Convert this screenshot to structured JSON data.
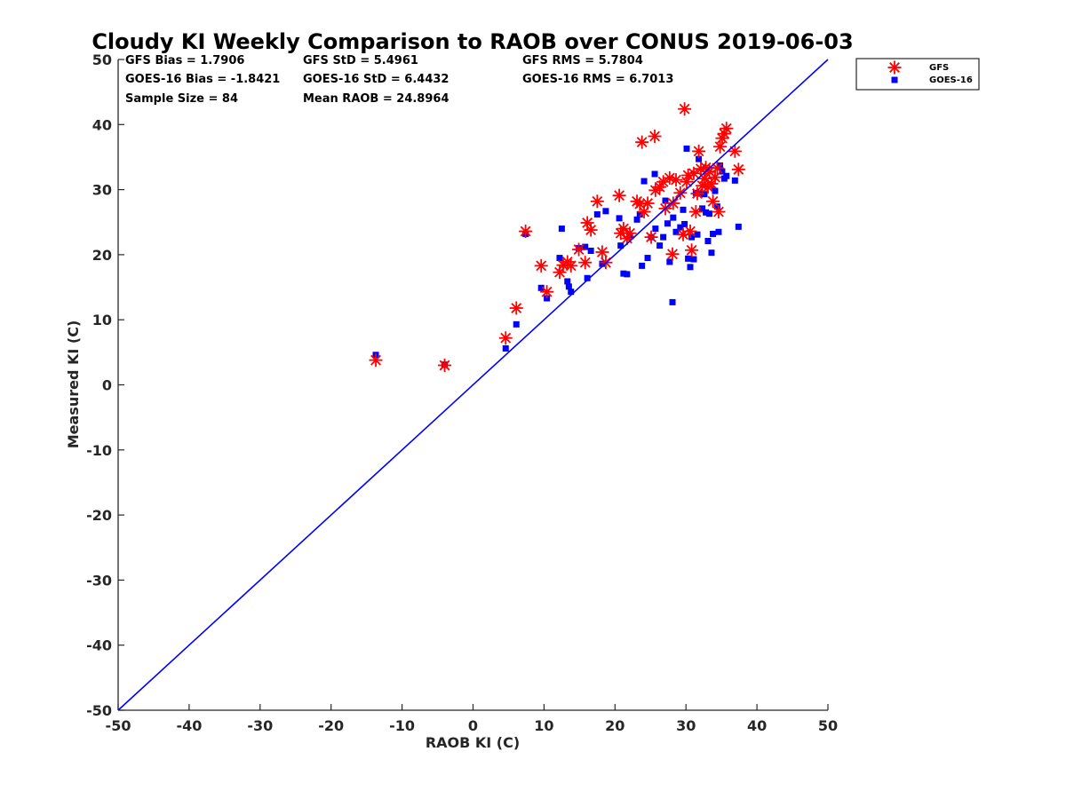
{
  "chart_data": {
    "type": "scatter",
    "title": "Cloudy KI Weekly Comparison to RAOB over CONUS 2019-06-03",
    "xlabel": "RAOB KI (C)",
    "ylabel": "Measured KI (C)",
    "xlim": [
      -50,
      50
    ],
    "ylim": [
      -50,
      50
    ],
    "xticks": [
      "-50",
      "-40",
      "-30",
      "-20",
      "-10",
      "0",
      "10",
      "20",
      "30",
      "40",
      "50"
    ],
    "yticks": [
      "50",
      "40",
      "30",
      "20",
      "10",
      "0",
      "-10",
      "-20",
      "-30",
      "-40",
      "-50"
    ],
    "grid": false,
    "legend_position": "outside-top-right",
    "reference_line": {
      "type": "one-to-one",
      "color": "#0000ff"
    },
    "stats": [
      [
        "GFS Bias = 1.7906",
        "GFS StD = 5.4961",
        "GFS RMS = 5.7804"
      ],
      [
        "GOES-16 Bias = -1.8421",
        "GOES-16 StD = 6.4432",
        "GOES-16 RMS = 6.7013"
      ],
      [
        "Sample Size = 84",
        "Mean RAOB = 24.8964"
      ]
    ],
    "series": [
      {
        "name": "GFS",
        "marker": "asterisk",
        "color": "#ff0000",
        "points": [
          [
            -13.7,
            3.8
          ],
          [
            -4,
            3
          ],
          [
            4.6,
            7.2
          ],
          [
            6.1,
            11.8
          ],
          [
            7.4,
            23.6
          ],
          [
            9.6,
            18.3
          ],
          [
            10.4,
            14.3
          ],
          [
            12.2,
            17.3
          ],
          [
            12.7,
            18.4
          ],
          [
            13.3,
            18.9
          ],
          [
            13.8,
            18.3
          ],
          [
            14.9,
            20.8
          ],
          [
            15.8,
            18.8
          ],
          [
            16.1,
            24.9
          ],
          [
            16.6,
            23.8
          ],
          [
            17.5,
            28.2
          ],
          [
            18.2,
            20.4
          ],
          [
            18.7,
            18.8
          ],
          [
            20.6,
            29.1
          ],
          [
            20.8,
            23.3
          ],
          [
            21.2,
            24
          ],
          [
            21.7,
            22.5
          ],
          [
            22.1,
            23.3
          ],
          [
            23.1,
            28.2
          ],
          [
            23.5,
            27.8
          ],
          [
            23.8,
            37.3
          ],
          [
            24.1,
            26.6
          ],
          [
            24.6,
            27.9
          ],
          [
            25.1,
            22.7
          ],
          [
            25.6,
            38.2
          ],
          [
            25.7,
            29.9
          ],
          [
            26.3,
            30.4
          ],
          [
            26.8,
            31.2
          ],
          [
            27.1,
            27.1
          ],
          [
            27.7,
            31.8
          ],
          [
            28.1,
            20.1
          ],
          [
            28.2,
            27.9
          ],
          [
            28.6,
            31.5
          ],
          [
            29.2,
            29.5
          ],
          [
            29.6,
            23.1
          ],
          [
            29.8,
            42.4
          ],
          [
            30.1,
            31.2
          ],
          [
            30.3,
            32.2
          ],
          [
            30.6,
            23.6
          ],
          [
            30.8,
            20.7
          ],
          [
            31.1,
            32.5
          ],
          [
            31.4,
            26.6
          ],
          [
            31.6,
            29.4
          ],
          [
            31.8,
            35.9
          ],
          [
            32.1,
            33.2
          ],
          [
            32.3,
            30.6
          ],
          [
            32.6,
            31.7
          ],
          [
            32.8,
            33.4
          ],
          [
            33.1,
            30.4
          ],
          [
            33.3,
            32.8
          ],
          [
            33.6,
            30.9
          ],
          [
            33.8,
            28.2
          ],
          [
            34.1,
            31.9
          ],
          [
            34.4,
            33.3
          ],
          [
            34.6,
            26.6
          ],
          [
            34.8,
            36.6
          ],
          [
            35.1,
            37.9
          ],
          [
            35.4,
            38.6
          ],
          [
            35.7,
            39.4
          ],
          [
            36.9,
            35.9
          ],
          [
            37.4,
            33.1
          ]
        ]
      },
      {
        "name": "GOES-16",
        "marker": "square",
        "color": "#0000ff",
        "points": [
          [
            -13.7,
            4.6
          ],
          [
            -4,
            3.1
          ],
          [
            4.6,
            5.6
          ],
          [
            6.1,
            9.3
          ],
          [
            7.4,
            23.2
          ],
          [
            9.6,
            14.9
          ],
          [
            10.4,
            13.3
          ],
          [
            12.2,
            19.5
          ],
          [
            12.5,
            24
          ],
          [
            13.3,
            15.9
          ],
          [
            13.5,
            15.1
          ],
          [
            13.8,
            14.3
          ],
          [
            14.9,
            21
          ],
          [
            15.8,
            21.2
          ],
          [
            16.1,
            16.4
          ],
          [
            16.6,
            20.6
          ],
          [
            17.5,
            26.2
          ],
          [
            18.2,
            18.6
          ],
          [
            18.7,
            26.7
          ],
          [
            20.6,
            25.6
          ],
          [
            20.8,
            21.4
          ],
          [
            21.2,
            17.1
          ],
          [
            21.7,
            17
          ],
          [
            22.1,
            22.9
          ],
          [
            23.1,
            25.4
          ],
          [
            23.5,
            26.2
          ],
          [
            23.8,
            18.3
          ],
          [
            24.1,
            31.3
          ],
          [
            24.6,
            19.5
          ],
          [
            25.1,
            22.7
          ],
          [
            25.6,
            32.4
          ],
          [
            25.7,
            24
          ],
          [
            26.3,
            21.4
          ],
          [
            26.8,
            22.7
          ],
          [
            27.1,
            28.3
          ],
          [
            27.4,
            24.8
          ],
          [
            27.7,
            18.9
          ],
          [
            28.1,
            12.7
          ],
          [
            28.2,
            25.7
          ],
          [
            28.6,
            23.5
          ],
          [
            29.2,
            24.2
          ],
          [
            29.6,
            26.9
          ],
          [
            29.8,
            24.7
          ],
          [
            30.1,
            36.3
          ],
          [
            30.3,
            19.4
          ],
          [
            30.6,
            18.1
          ],
          [
            30.8,
            22.7
          ],
          [
            31.1,
            19.3
          ],
          [
            31.4,
            29.5
          ],
          [
            31.6,
            23.1
          ],
          [
            31.8,
            34.7
          ],
          [
            32.1,
            29.4
          ],
          [
            32.3,
            27.1
          ],
          [
            32.6,
            29.3
          ],
          [
            32.8,
            26.5
          ],
          [
            33.1,
            22.1
          ],
          [
            33.3,
            26.3
          ],
          [
            33.6,
            20.3
          ],
          [
            33.8,
            23.2
          ],
          [
            34.1,
            29.8
          ],
          [
            34.4,
            27.4
          ],
          [
            34.6,
            23.5
          ],
          [
            34.8,
            33.7
          ],
          [
            35.1,
            32.8
          ],
          [
            35.4,
            31.7
          ],
          [
            35.7,
            32.1
          ],
          [
            36.9,
            31.4
          ],
          [
            37.4,
            24.3
          ]
        ]
      }
    ]
  }
}
